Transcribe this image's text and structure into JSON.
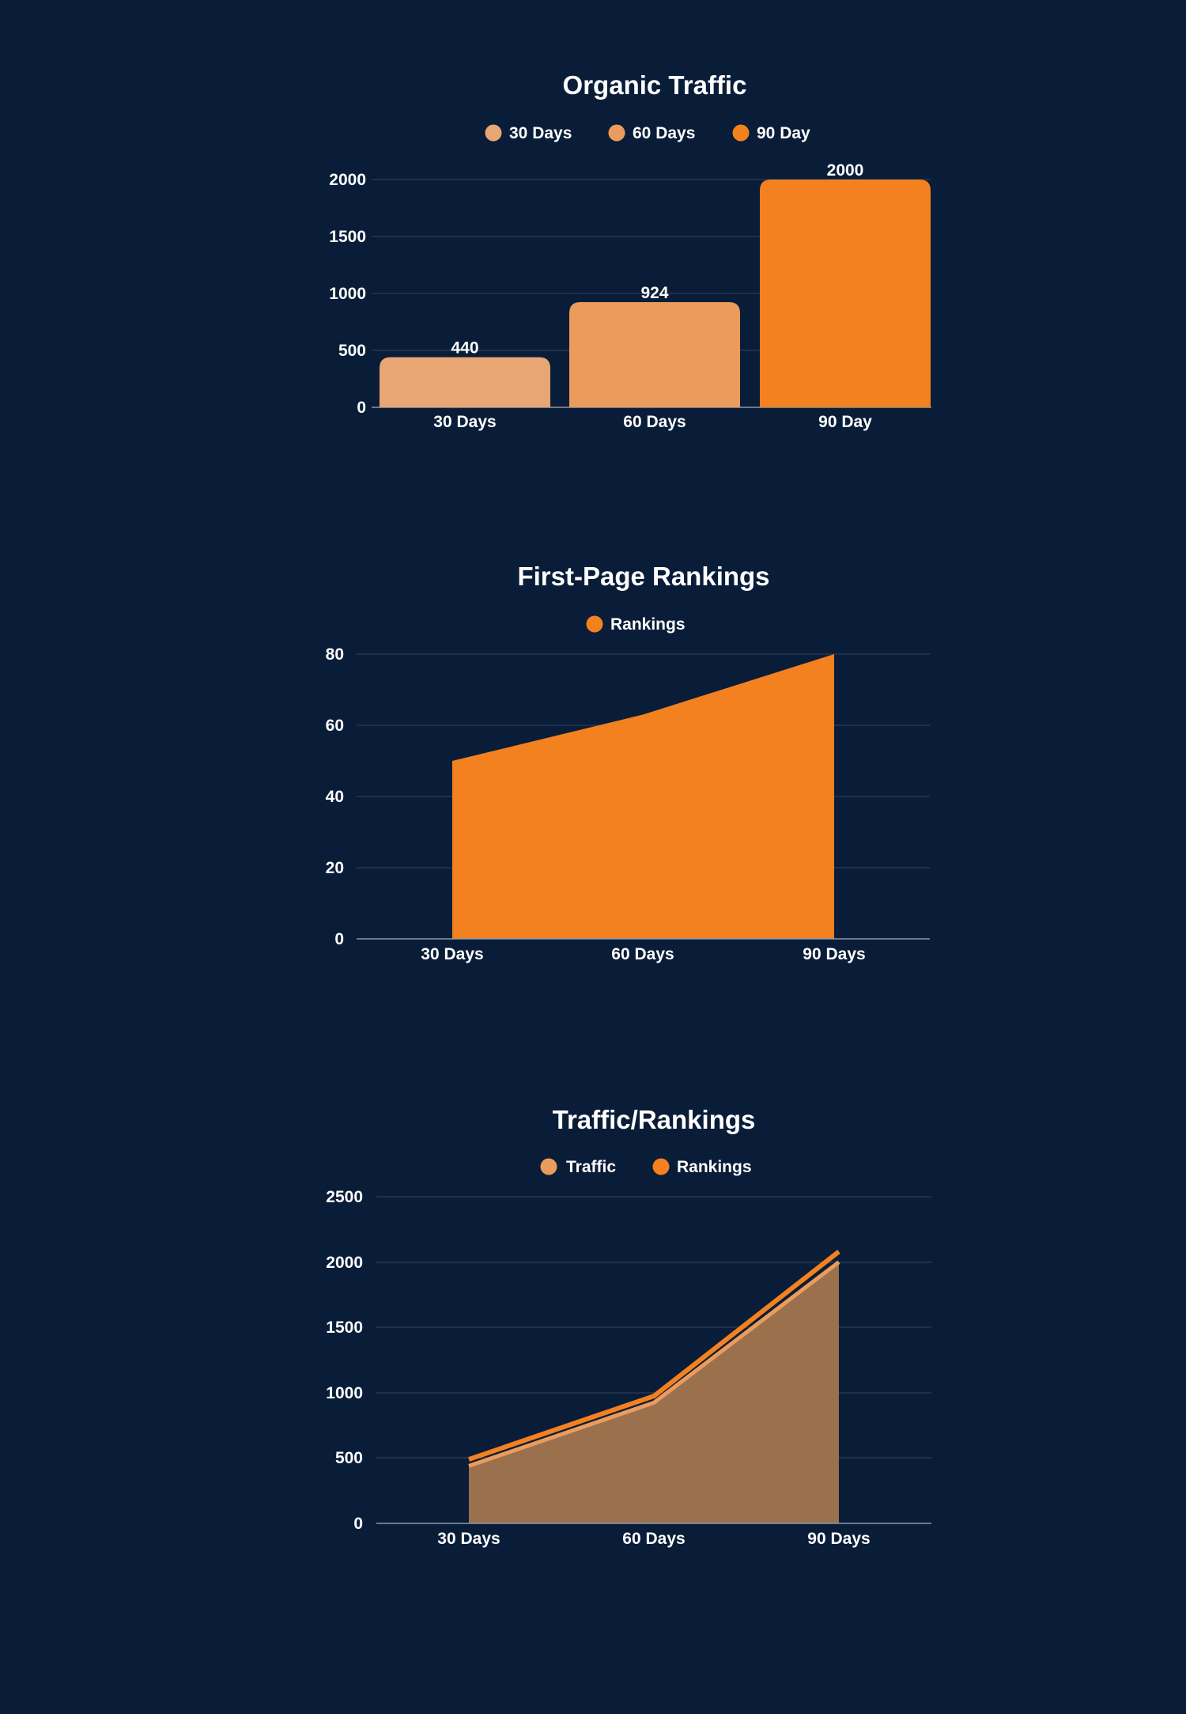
{
  "chart_data": [
    {
      "type": "bar",
      "title": "Organic Traffic",
      "categories": [
        "30 Days",
        "60 Days",
        "90 Day"
      ],
      "values": [
        440,
        924,
        2000
      ],
      "colors": [
        "#e8a674",
        "#eb9c5c",
        "#f38120"
      ],
      "legend": [
        {
          "label": "30 Days",
          "color": "#e8a674"
        },
        {
          "label": "60 Days",
          "color": "#eb9c5c"
        },
        {
          "label": "90 Day",
          "color": "#f38120"
        }
      ],
      "yticks": [
        "2000",
        "1500",
        "1000",
        "500",
        "0"
      ],
      "ylim": [
        0,
        2000
      ],
      "grid": true,
      "legend_position": "top"
    },
    {
      "type": "area",
      "title": "First-Page Rankings",
      "categories": [
        "30 Days",
        "60 Days",
        "90 Days"
      ],
      "series": [
        {
          "name": "Rankings",
          "values": [
            50,
            63,
            80
          ],
          "color": "#f38120"
        }
      ],
      "yticks": [
        "80",
        "60",
        "40",
        "20",
        "0"
      ],
      "ylim": [
        0,
        80
      ],
      "grid": true,
      "legend_position": "top"
    },
    {
      "type": "area",
      "title": "Traffic/Rankings",
      "categories": [
        "30 Days",
        "60 Days",
        "90 Days"
      ],
      "series": [
        {
          "name": "Traffic",
          "values": [
            440,
            924,
            2000
          ],
          "color": "#eb9c5c"
        },
        {
          "name": "Rankings",
          "values": [
            490,
            974,
            2080
          ],
          "color": "#f38120"
        }
      ],
      "yticks": [
        "2500",
        "2000",
        "1500",
        "1000",
        "500",
        "0"
      ],
      "ylim": [
        0,
        2500
      ],
      "grid": true,
      "legend_position": "top"
    }
  ]
}
